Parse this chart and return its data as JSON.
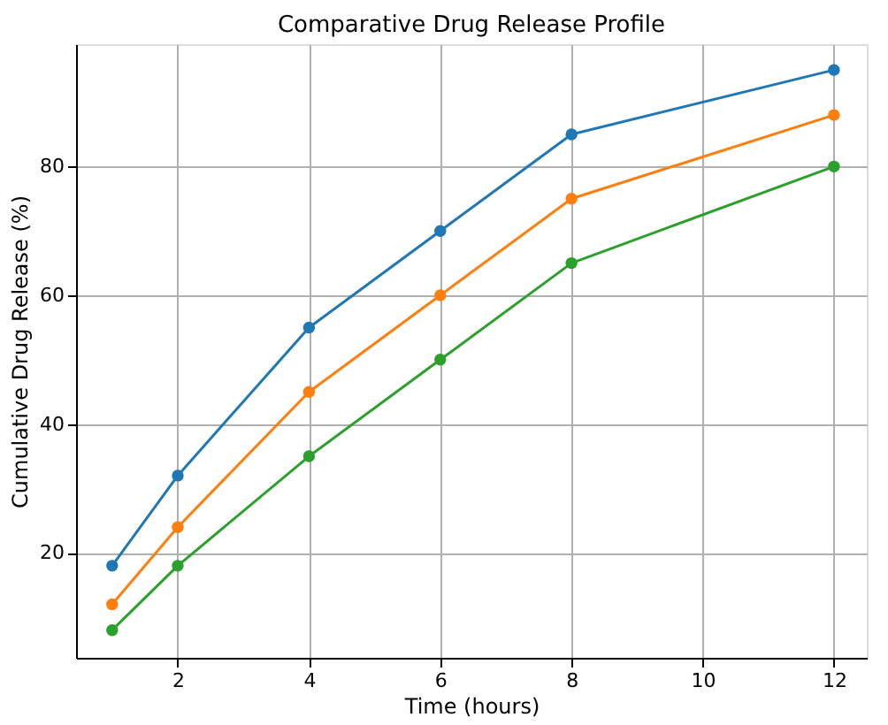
{
  "chart_data": {
    "type": "line",
    "title": "Comparative Drug Release Profile",
    "xlabel": "Time (hours)",
    "ylabel": "Cumulative Drug Release (%)",
    "x": [
      1,
      2,
      4,
      6,
      8,
      12
    ],
    "series": [
      {
        "color": "#1f77b4",
        "values": [
          18,
          32,
          55,
          70,
          85,
          95
        ]
      },
      {
        "color": "#ff7f0e",
        "values": [
          12,
          24,
          45,
          60,
          75,
          88
        ]
      },
      {
        "color": "#2ca02c",
        "values": [
          8,
          18,
          35,
          50,
          65,
          80
        ]
      }
    ],
    "xlim": [
      0.45,
      12.5
    ],
    "xticks": [
      2,
      4,
      6,
      8,
      10,
      12
    ],
    "ylim": [
      3.7,
      99
    ],
    "yticks": [
      20,
      40,
      60,
      80
    ],
    "grid": true,
    "marker": "circle",
    "line_style": "solid",
    "legend": false
  }
}
